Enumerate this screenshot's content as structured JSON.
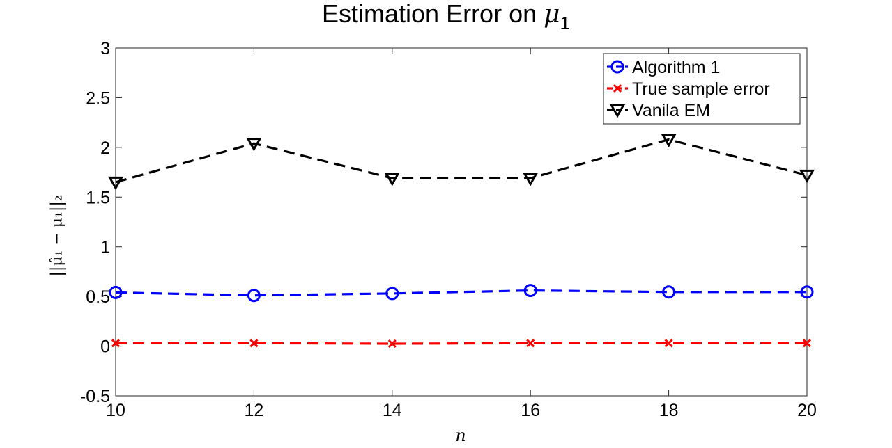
{
  "chart_data": {
    "type": "line",
    "title_prefix": "Estimation Error on",
    "title_symbol": "μ",
    "title_subscript": "1",
    "xlabel": "n",
    "ylabel": "||μ̂₁ − μ₁||₂",
    "x": [
      10,
      12,
      14,
      16,
      18,
      20
    ],
    "xlim": [
      10,
      20
    ],
    "ylim": [
      -0.5,
      3
    ],
    "xticks": [
      "10",
      "12",
      "14",
      "16",
      "18",
      "20"
    ],
    "yticks": [
      "-0.5",
      "0",
      "0.5",
      "1",
      "1.5",
      "2",
      "2.5",
      "3"
    ],
    "legend_position": "top-right",
    "grid": false,
    "series": [
      {
        "name": "Algorithm 1",
        "color": "#0000ff",
        "marker": "circle",
        "line": "dashed",
        "values": [
          0.54,
          0.51,
          0.53,
          0.56,
          0.545,
          0.545
        ]
      },
      {
        "name": "True sample error",
        "color": "#ff0000",
        "marker": "x",
        "line": "dashed",
        "values": [
          0.03,
          0.03,
          0.025,
          0.03,
          0.03,
          0.03
        ]
      },
      {
        "name": "Vanila EM",
        "color": "#000000",
        "marker": "triangle-down",
        "line": "dashed",
        "values": [
          1.65,
          2.04,
          1.69,
          1.69,
          2.08,
          1.72
        ]
      }
    ]
  }
}
